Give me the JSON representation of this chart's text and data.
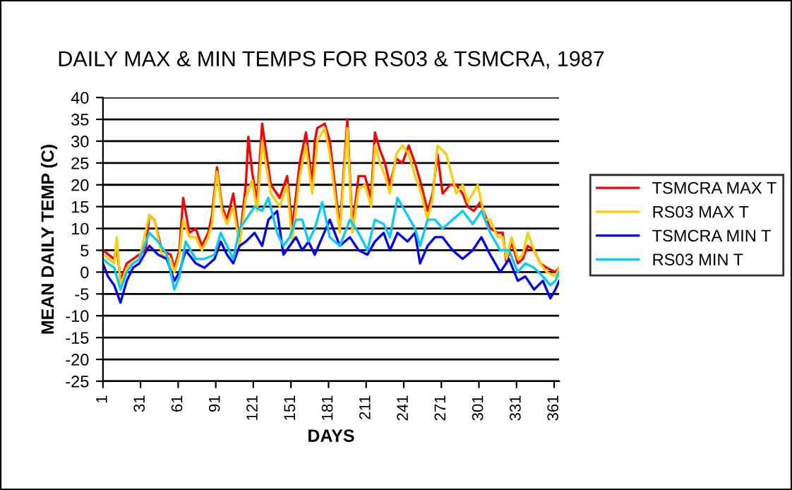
{
  "chart_data": {
    "type": "line",
    "title": "DAILY MAX & MIN TEMPS FOR RS03 & TSMCRA, 1987",
    "xlabel": "DAYS",
    "ylabel": "MEAN DAILY TEMP (C)",
    "xlim": [
      1,
      365
    ],
    "xticks": [
      1,
      31,
      61,
      91,
      121,
      151,
      181,
      211,
      241,
      271,
      301,
      331,
      361
    ],
    "ylim": [
      -25,
      40
    ],
    "yticks": [
      -25,
      -20,
      -15,
      -10,
      -5,
      0,
      5,
      10,
      15,
      20,
      25,
      30,
      35,
      40
    ],
    "grid": "y",
    "legend": "right",
    "marker": "none",
    "line_style": "solid",
    "series": [
      {
        "name": "TSMCRA MAX T",
        "color": "#ff0000",
        "x": [
          1,
          10,
          12,
          15,
          20,
          30,
          35,
          38,
          42,
          48,
          55,
          58,
          62,
          65,
          70,
          75,
          80,
          85,
          88,
          92,
          96,
          100,
          105,
          110,
          115,
          117,
          120,
          124,
          128,
          135,
          142,
          148,
          152,
          158,
          163,
          168,
          170,
          172,
          178,
          182,
          186,
          190,
          196,
          200,
          205,
          210,
          215,
          218,
          222,
          226,
          230,
          235,
          240,
          245,
          250,
          255,
          260,
          264,
          268,
          272,
          278,
          283,
          288,
          292,
          297,
          302,
          306,
          310,
          316,
          320,
          323,
          327,
          332,
          336,
          340,
          345,
          350,
          355,
          362,
          365
        ],
        "values": [
          5,
          3,
          6,
          -2,
          2,
          4,
          5,
          13,
          12,
          5,
          4,
          1,
          5,
          17,
          9,
          10,
          6,
          9,
          13,
          24,
          15,
          12,
          18,
          7,
          20,
          31,
          23,
          16,
          34,
          20,
          17,
          22,
          10,
          25,
          32,
          20,
          30,
          33,
          34,
          30,
          20,
          10,
          35,
          10,
          22,
          22,
          17,
          32,
          28,
          25,
          20,
          26,
          25,
          29,
          25,
          20,
          14,
          18,
          27,
          18,
          20,
          20,
          18,
          15,
          14,
          16,
          13,
          10,
          9,
          9,
          2,
          7,
          2,
          3,
          6,
          5,
          2,
          1,
          0,
          1
        ]
      },
      {
        "name": "RS03 MAX T",
        "color": "#ffcc00",
        "x": [
          1,
          10,
          12,
          15,
          20,
          30,
          38,
          42,
          48,
          55,
          58,
          62,
          65,
          70,
          75,
          80,
          85,
          88,
          92,
          96,
          100,
          105,
          110,
          115,
          120,
          124,
          128,
          135,
          142,
          148,
          152,
          158,
          163,
          168,
          172,
          178,
          182,
          186,
          190,
          196,
          200,
          205,
          210,
          215,
          218,
          222,
          226,
          230,
          235,
          240,
          245,
          250,
          255,
          260,
          264,
          268,
          275,
          283,
          288,
          292,
          300,
          306,
          310,
          316,
          320,
          323,
          327,
          332,
          336,
          340,
          345,
          350,
          355,
          362,
          365
        ],
        "values": [
          4,
          2,
          8,
          -3,
          1,
          3,
          13,
          12,
          4,
          3,
          0,
          4,
          12,
          8,
          8,
          5,
          8,
          11,
          23,
          14,
          11,
          15,
          6,
          17,
          21,
          14,
          30,
          18,
          15,
          20,
          7,
          22,
          29,
          18,
          30,
          33,
          27,
          18,
          9,
          33,
          9,
          19,
          20,
          15,
          29,
          25,
          22,
          18,
          27,
          29,
          27,
          22,
          18,
          12,
          17,
          29,
          27,
          18,
          20,
          16,
          20,
          12,
          12,
          8,
          8,
          3,
          8,
          3,
          4,
          9,
          5,
          2,
          0,
          -1,
          1
        ]
      },
      {
        "name": "TSMCRA MIN T",
        "color": "#0000ff",
        "x": [
          1,
          5,
          10,
          15,
          20,
          25,
          30,
          38,
          45,
          52,
          58,
          62,
          67,
          75,
          82,
          90,
          95,
          100,
          105,
          110,
          115,
          122,
          128,
          133,
          140,
          145,
          150,
          155,
          160,
          165,
          170,
          176,
          182,
          190,
          198,
          205,
          212,
          218,
          225,
          230,
          236,
          244,
          250,
          254,
          260,
          266,
          272,
          280,
          288,
          296,
          303,
          310,
          318,
          325,
          332,
          338,
          345,
          352,
          358,
          362,
          365
        ],
        "values": [
          2,
          -1,
          -3,
          -7,
          -2,
          1,
          2,
          6,
          4,
          3,
          -2,
          0,
          5,
          2,
          1,
          3,
          7,
          4,
          2,
          6,
          7,
          9,
          6,
          12,
          14,
          4,
          6,
          8,
          5,
          7,
          4,
          8,
          12,
          6,
          8,
          5,
          4,
          7,
          9,
          5,
          9,
          7,
          9,
          2,
          6,
          8,
          8,
          5,
          3,
          5,
          8,
          4,
          0,
          3,
          -2,
          -1,
          -4,
          -2,
          -6,
          -4,
          -2
        ]
      },
      {
        "name": "RS03 MIN T",
        "color": "#00ccff",
        "x": [
          1,
          5,
          10,
          15,
          20,
          25,
          30,
          38,
          45,
          52,
          58,
          62,
          67,
          75,
          82,
          90,
          95,
          100,
          105,
          110,
          115,
          122,
          128,
          133,
          140,
          145,
          150,
          155,
          160,
          165,
          170,
          176,
          182,
          190,
          198,
          205,
          212,
          218,
          225,
          230,
          236,
          244,
          250,
          254,
          260,
          266,
          272,
          280,
          288,
          296,
          303,
          310,
          318,
          325,
          332,
          338,
          345,
          352,
          358,
          362,
          365
        ],
        "values": [
          3,
          2,
          1,
          -4,
          0,
          2,
          3,
          9,
          7,
          4,
          -4,
          -1,
          7,
          3,
          3,
          4,
          9,
          6,
          3,
          10,
          12,
          15,
          14,
          17,
          9,
          6,
          8,
          12,
          12,
          7,
          10,
          16,
          8,
          6,
          12,
          9,
          5,
          12,
          11,
          8,
          17,
          13,
          10,
          6,
          12,
          12,
          10,
          12,
          14,
          11,
          14,
          9,
          5,
          5,
          0,
          2,
          1,
          -1,
          -3,
          -2,
          0
        ]
      }
    ]
  }
}
